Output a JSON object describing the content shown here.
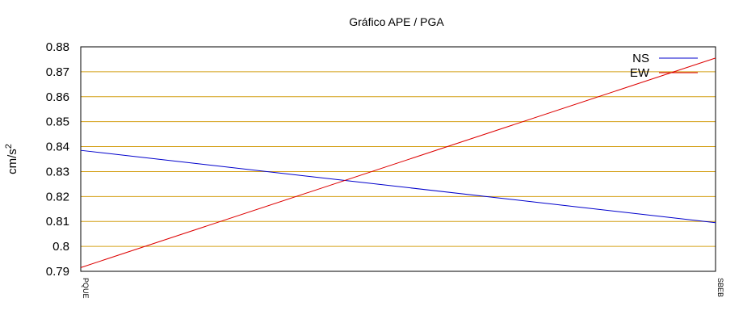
{
  "chart_data": {
    "type": "line",
    "title": "Gráfico  APE / PGA",
    "ylabel": {
      "base": "cm/s",
      "superscript": "2"
    },
    "xlabel": "",
    "categories": [
      "PQUE",
      "SBEB"
    ],
    "ylim": [
      0.79,
      0.88
    ],
    "yticks": [
      "0.79",
      "0.8",
      "0.81",
      "0.82",
      "0.83",
      "0.84",
      "0.85",
      "0.86",
      "0.87",
      "0.88"
    ],
    "grid": true,
    "legend_position": "top-right",
    "grid_color": "#d4a017",
    "series": [
      {
        "name": "NS",
        "values": [
          0.8385,
          0.8095
        ],
        "color": "#0000cc"
      },
      {
        "name": "EW",
        "values": [
          0.7915,
          0.8755
        ],
        "color": "#dd0000"
      }
    ]
  }
}
